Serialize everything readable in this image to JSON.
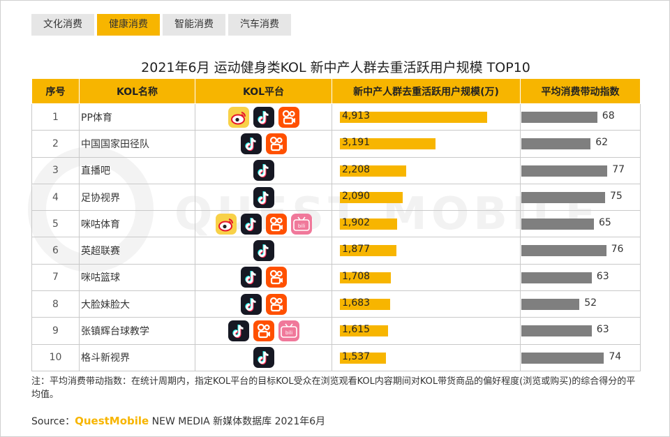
{
  "tabs": [
    {
      "label": "文化消费",
      "active": false
    },
    {
      "label": "健康消费",
      "active": true
    },
    {
      "label": "智能消费",
      "active": false
    },
    {
      "label": "汽车消费",
      "active": false
    }
  ],
  "title": "2021年6月 运动健身类KOL 新中产人群去重活跃用户规模 TOP10",
  "watermark": "QUEST MOBILE",
  "headers": {
    "rank": "序号",
    "name": "KOL名称",
    "platform": "KOL平台",
    "users": "新中产人群去重活跃用户规模(万)",
    "index": "平均消费带动指数"
  },
  "platform_icons": {
    "weibo": {
      "icon": "weibo-icon",
      "color": "#e6162d"
    },
    "douyin": {
      "icon": "douyin-icon",
      "color": "#161823"
    },
    "kuaishou": {
      "icon": "kuaishou-icon",
      "color": "#ff5000"
    },
    "bilibili": {
      "icon": "bilibili-icon",
      "color": "#f0789a",
      "text": "bilibili"
    }
  },
  "colors": {
    "accent": "#f7b500",
    "index_bar": "#7f7f7f"
  },
  "chart_data": {
    "type": "table",
    "columns": [
      "序号",
      "KOL名称",
      "KOL平台",
      "新中产人群去重活跃用户规模(万)",
      "平均消费带动指数"
    ],
    "users_max": 6000,
    "index_max": 100,
    "rows": [
      {
        "rank": "1",
        "name": "PP体育",
        "platforms": [
          "weibo",
          "douyin",
          "kuaishou"
        ],
        "users": 4913,
        "users_label": "4,913",
        "index": 68
      },
      {
        "rank": "2",
        "name": "中国国家田径队",
        "platforms": [
          "douyin",
          "kuaishou"
        ],
        "users": 3191,
        "users_label": "3,191",
        "index": 62
      },
      {
        "rank": "3",
        "name": "直播吧",
        "platforms": [
          "douyin"
        ],
        "users": 2208,
        "users_label": "2,208",
        "index": 77
      },
      {
        "rank": "4",
        "name": "足协视界",
        "platforms": [
          "douyin"
        ],
        "users": 2090,
        "users_label": "2,090",
        "index": 75
      },
      {
        "rank": "5",
        "name": "咪咕体育",
        "platforms": [
          "weibo",
          "douyin",
          "kuaishou",
          "bilibili"
        ],
        "users": 1902,
        "users_label": "1,902",
        "index": 65
      },
      {
        "rank": "6",
        "name": "英超联赛",
        "platforms": [
          "douyin"
        ],
        "users": 1877,
        "users_label": "1,877",
        "index": 76
      },
      {
        "rank": "7",
        "name": "咪咕篮球",
        "platforms": [
          "douyin",
          "kuaishou"
        ],
        "users": 1708,
        "users_label": "1,708",
        "index": 63
      },
      {
        "rank": "8",
        "name": "大脸妹脸大",
        "platforms": [
          "douyin",
          "kuaishou"
        ],
        "users": 1683,
        "users_label": "1,683",
        "index": 52
      },
      {
        "rank": "9",
        "name": "张镇辉台球教学",
        "platforms": [
          "douyin",
          "kuaishou",
          "bilibili"
        ],
        "users": 1615,
        "users_label": "1,615",
        "index": 63
      },
      {
        "rank": "10",
        "name": "格斗新视界",
        "platforms": [
          "douyin"
        ],
        "users": 1537,
        "users_label": "1,537",
        "index": 74
      }
    ]
  },
  "note": "注：平均消费带动指数：在统计周期内，指定KOL平台的目标KOL受众在浏览观看KOL内容期间对KOL带货商品的偏好程度(浏览或购买)的综合得分的平均值。",
  "source": {
    "prefix": "Source：",
    "brand": "QuestMobile",
    "suffix": " NEW MEDIA 新媒体数据库 2021年6月"
  }
}
